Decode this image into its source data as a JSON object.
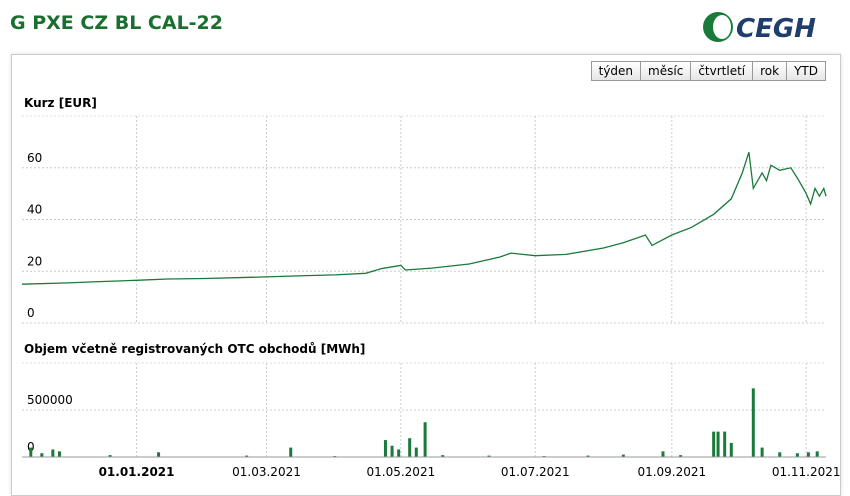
{
  "header": {
    "title": "G PXE CZ BL CAL-22",
    "logo": "CEGH"
  },
  "buttons": [
    "týden",
    "měsíc",
    "čtvrtletí",
    "rok",
    "YTD"
  ],
  "chart_data": [
    {
      "type": "line",
      "title": "Kurz [EUR]",
      "color": "#1a7a3a",
      "grid": true,
      "x": [
        "2020-11-10",
        "2020-12-01",
        "2020-12-15",
        "2021-01-01",
        "2021-01-15",
        "2021-02-01",
        "2021-02-15",
        "2021-03-01",
        "2021-03-15",
        "2021-04-01",
        "2021-04-15",
        "2021-04-22",
        "2021-05-01",
        "2021-05-03",
        "2021-05-15",
        "2021-06-01",
        "2021-06-15",
        "2021-06-20",
        "2021-07-01",
        "2021-07-15",
        "2021-08-01",
        "2021-08-10",
        "2021-08-20",
        "2021-08-23",
        "2021-09-01",
        "2021-09-10",
        "2021-09-20",
        "2021-09-28",
        "2021-10-03",
        "2021-10-06",
        "2021-10-08",
        "2021-10-12",
        "2021-10-14",
        "2021-10-16",
        "2021-10-20",
        "2021-10-25",
        "2021-10-28",
        "2021-11-01",
        "2021-11-03",
        "2021-11-05",
        "2021-11-07",
        "2021-11-09",
        "2021-11-10"
      ],
      "values": [
        15,
        15.5,
        16,
        16.5,
        17,
        17.2,
        17.5,
        17.8,
        18.2,
        18.6,
        19.2,
        21,
        22.3,
        20.5,
        21.2,
        22.8,
        25.5,
        27,
        26,
        26.5,
        29,
        31,
        34,
        30,
        34,
        37,
        42,
        48,
        58,
        66,
        52,
        58,
        55,
        61,
        59,
        60,
        56,
        50,
        46,
        52,
        49,
        52,
        49
      ],
      "xlim": [
        "2020-11-10",
        "2021-11-10"
      ],
      "ylim": [
        0,
        80
      ],
      "yticks": [
        0,
        20,
        40,
        60
      ]
    },
    {
      "type": "bar",
      "title": "Objem včetně registrovaných OTC obchodů [MWh]",
      "color": "#1a7a3a",
      "grid": true,
      "x": [
        "2020-11-14",
        "2020-11-19",
        "2020-11-24",
        "2020-11-27",
        "2020-12-20",
        "2021-01-11",
        "2021-02-20",
        "2021-03-12",
        "2021-04-01",
        "2021-04-24",
        "2021-04-27",
        "2021-04-30",
        "2021-05-05",
        "2021-05-08",
        "2021-05-12",
        "2021-05-20",
        "2021-06-10",
        "2021-07-05",
        "2021-07-25",
        "2021-08-10",
        "2021-08-28",
        "2021-09-05",
        "2021-09-20",
        "2021-09-22",
        "2021-09-25",
        "2021-09-28",
        "2021-10-08",
        "2021-10-12",
        "2021-10-20",
        "2021-10-28",
        "2021-11-02",
        "2021-11-06"
      ],
      "values": [
        100000,
        40000,
        80000,
        60000,
        20000,
        50000,
        15000,
        100000,
        10000,
        180000,
        120000,
        80000,
        200000,
        100000,
        370000,
        20000,
        15000,
        10000,
        15000,
        25000,
        60000,
        20000,
        270000,
        270000,
        270000,
        150000,
        730000,
        100000,
        50000,
        40000,
        50000,
        60000
      ],
      "xlim": [
        "2020-11-10",
        "2021-11-10"
      ],
      "xticks": [
        {
          "value": "2021-01-01",
          "label": "01.01.2021"
        },
        {
          "value": "2021-03-01",
          "label": "01.03.2021"
        },
        {
          "value": "2021-05-01",
          "label": "01.05.2021"
        },
        {
          "value": "2021-07-01",
          "label": "01.07.2021"
        },
        {
          "value": "2021-09-01",
          "label": "01.09.2021"
        },
        {
          "value": "2021-11-01",
          "label": "01.11.2021"
        }
      ],
      "ylim": [
        0,
        1000000
      ],
      "yticks": [
        0,
        500000
      ]
    }
  ]
}
